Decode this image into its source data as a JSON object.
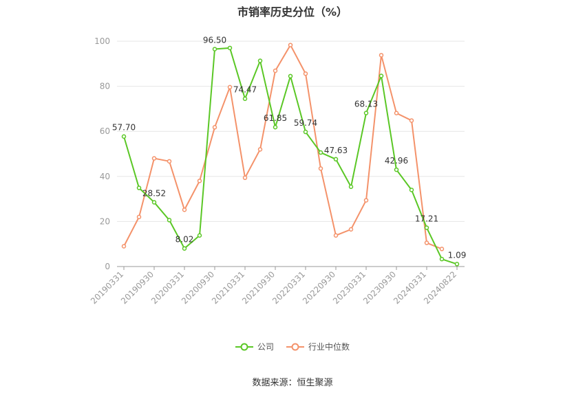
{
  "chart_data": {
    "type": "line",
    "title": "市销率历史分位（%）",
    "x": [
      "20190331",
      "20190630",
      "20190930",
      "20191231",
      "20200331",
      "20200630",
      "20200930",
      "20201231",
      "20210331",
      "20210630",
      "20210930",
      "20211231",
      "20220331",
      "20220630",
      "20220930",
      "20221231",
      "20230331",
      "20230630",
      "20230930",
      "20231231",
      "20240331",
      "20240630",
      "20240822"
    ],
    "x_tick_labels": [
      "20190331",
      "20190930",
      "20200331",
      "20200930",
      "20210331",
      "20210930",
      "20220331",
      "20220930",
      "20230331",
      "20230930",
      "20240331",
      "20240822"
    ],
    "ylim": [
      0,
      100
    ],
    "y_ticks": [
      0,
      20,
      40,
      60,
      80,
      100
    ],
    "grid": true,
    "legend_position": "bottom",
    "series": [
      {
        "name": "公司",
        "color": "#5ac725",
        "values": [
          57.7,
          34.9,
          28.52,
          20.6,
          8.02,
          13.8,
          96.5,
          97.0,
          74.47,
          91.3,
          61.85,
          84.5,
          59.74,
          50.6,
          47.63,
          35.4,
          68.13,
          84.6,
          42.96,
          34.0,
          17.21,
          3.3,
          1.09
        ],
        "labels": {
          "0": "57.70",
          "2": "28.52",
          "4": "8.02",
          "6": "96.50",
          "8": "74.47",
          "10": "61.85",
          "12": "59.74",
          "14": "47.63",
          "16": "68.13",
          "18": "42.96",
          "20": "17.21",
          "22": "1.09"
        }
      },
      {
        "name": "行业中位数",
        "color": "#f4926a",
        "values": [
          9.0,
          22.0,
          48.0,
          46.7,
          25.2,
          38.0,
          61.8,
          79.6,
          39.4,
          52.0,
          86.9,
          98.3,
          85.6,
          43.5,
          13.8,
          16.5,
          29.4,
          93.8,
          68.1,
          64.8,
          10.5,
          7.8,
          null
        ]
      }
    ]
  },
  "footer": "数据来源：恒生聚源"
}
